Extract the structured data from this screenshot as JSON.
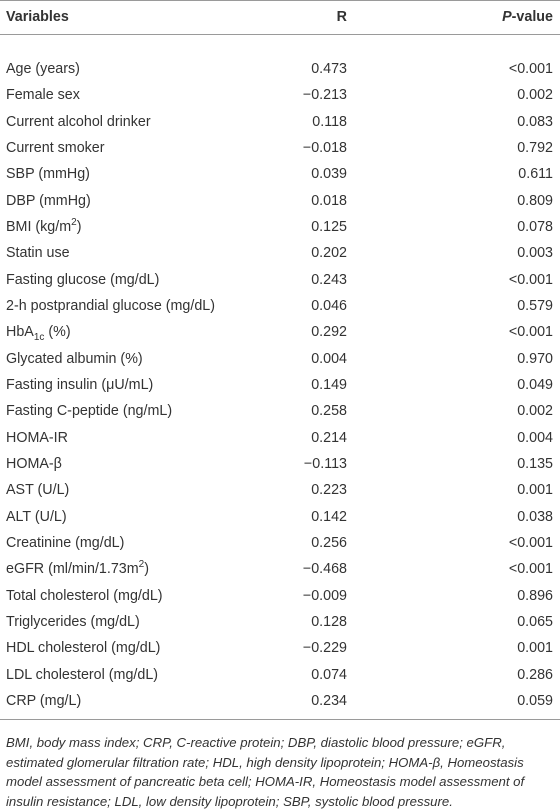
{
  "table": {
    "header": [
      [
        {
          "text": "Variables"
        }
      ],
      [
        {
          "text": "R"
        }
      ],
      [
        {
          "em": "P"
        },
        {
          "text": "-value"
        }
      ]
    ],
    "rows": [
      [
        [
          {
            "text": "Age (years)"
          }
        ],
        "0.473",
        "<0.001"
      ],
      [
        [
          {
            "text": "Female sex"
          }
        ],
        "−0.213",
        "0.002"
      ],
      [
        [
          {
            "text": "Current alcohol drinker"
          }
        ],
        "0.118",
        "0.083"
      ],
      [
        [
          {
            "text": "Current smoker"
          }
        ],
        "−0.018",
        "0.792"
      ],
      [
        [
          {
            "text": "SBP (mmHg)"
          }
        ],
        "0.039",
        "0.611"
      ],
      [
        [
          {
            "text": "DBP (mmHg)"
          }
        ],
        "0.018",
        "0.809"
      ],
      [
        [
          {
            "text": "BMI (kg/m"
          },
          {
            "sup": "2"
          },
          {
            "text": ")"
          }
        ],
        "0.125",
        "0.078"
      ],
      [
        [
          {
            "text": "Statin use"
          }
        ],
        "0.202",
        "0.003"
      ],
      [
        [
          {
            "text": "Fasting glucose (mg/dL)"
          }
        ],
        "0.243",
        "<0.001"
      ],
      [
        [
          {
            "text": "2-h postprandial glucose (mg/dL)"
          }
        ],
        "0.046",
        "0.579"
      ],
      [
        [
          {
            "text": "HbA"
          },
          {
            "sub": "1c"
          },
          {
            "text": " (%)"
          }
        ],
        "0.292",
        "<0.001"
      ],
      [
        [
          {
            "text": "Glycated albumin (%)"
          }
        ],
        "0.004",
        "0.970"
      ],
      [
        [
          {
            "text": "Fasting insulin (μU/mL)"
          }
        ],
        "0.149",
        "0.049"
      ],
      [
        [
          {
            "text": "Fasting C-peptide (ng/mL)"
          }
        ],
        "0.258",
        "0.002"
      ],
      [
        [
          {
            "text": "HOMA-IR"
          }
        ],
        "0.214",
        "0.004"
      ],
      [
        [
          {
            "text": "HOMA-β"
          }
        ],
        "−0.113",
        "0.135"
      ],
      [
        [
          {
            "text": "AST (U/L)"
          }
        ],
        "0.223",
        "0.001"
      ],
      [
        [
          {
            "text": "ALT (U/L)"
          }
        ],
        "0.142",
        "0.038"
      ],
      [
        [
          {
            "text": "Creatinine (mg/dL)"
          }
        ],
        "0.256",
        "<0.001"
      ],
      [
        [
          {
            "text": "eGFR (ml/min/1.73m"
          },
          {
            "sup": "2"
          },
          {
            "text": ")"
          }
        ],
        "−0.468",
        "<0.001"
      ],
      [
        [
          {
            "text": "Total cholesterol (mg/dL)"
          }
        ],
        "−0.009",
        "0.896"
      ],
      [
        [
          {
            "text": "Triglycerides (mg/dL)"
          }
        ],
        "0.128",
        "0.065"
      ],
      [
        [
          {
            "text": "HDL cholesterol (mg/dL)"
          }
        ],
        "−0.229",
        "0.001"
      ],
      [
        [
          {
            "text": "LDL cholesterol (mg/dL)"
          }
        ],
        "0.074",
        "0.286"
      ],
      [
        [
          {
            "text": "CRP (mg/L)"
          }
        ],
        "0.234",
        "0.059"
      ]
    ],
    "footnote": "BMI, body mass index; CRP, C-reactive protein; DBP, diastolic blood pressure; eGFR, estimated glomerular filtration rate; HDL, high density lipoprotein; HOMA-β, Homeostasis model assessment of pancreatic beta cell; HOMA-IR, Homeostasis model assessment of insulin resistance; LDL, low density lipoprotein; SBP, systolic blood pressure."
  }
}
